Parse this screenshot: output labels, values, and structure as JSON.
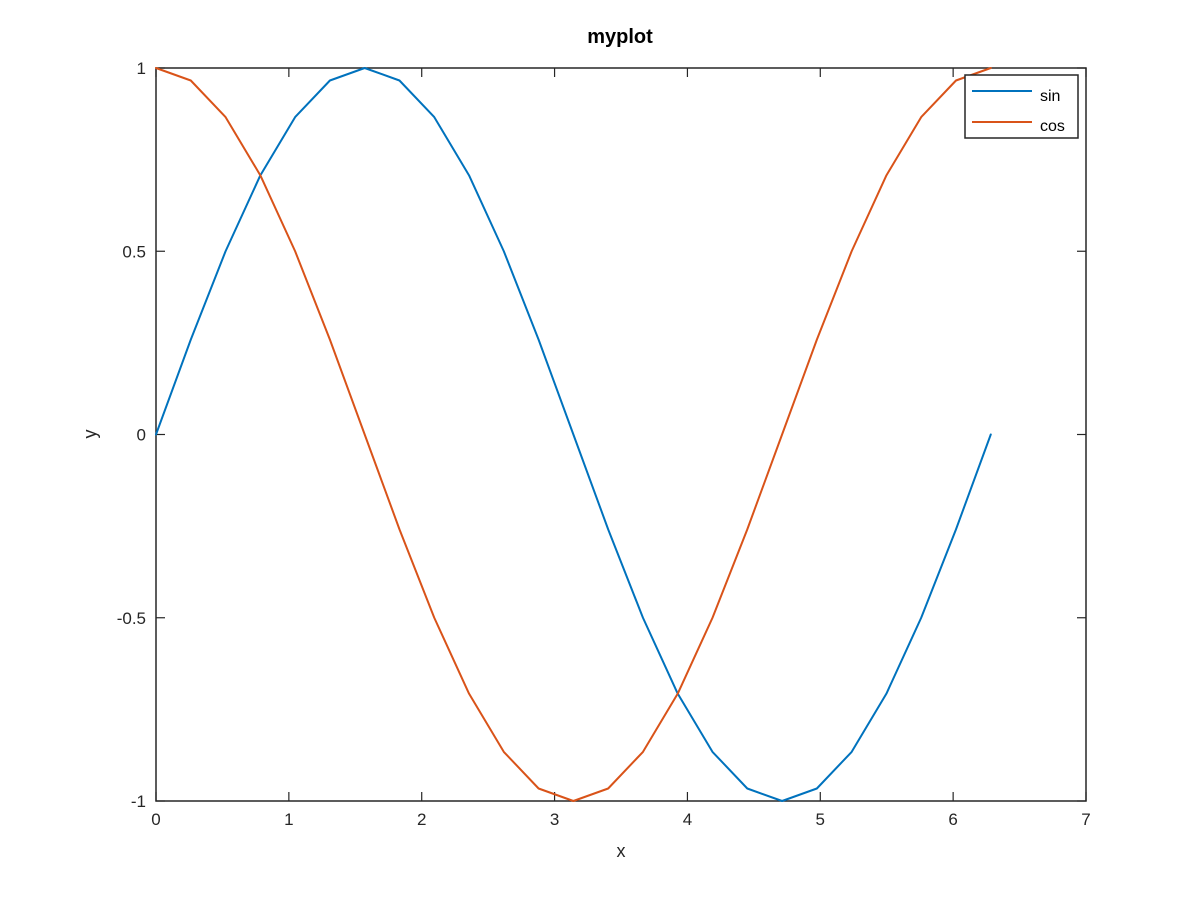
{
  "chart_data": {
    "type": "line",
    "title": "myplot",
    "xlabel": "x",
    "ylabel": "y",
    "xlim": [
      0,
      7
    ],
    "ylim": [
      -1,
      1
    ],
    "xticks": [
      0,
      1,
      2,
      3,
      4,
      5,
      6,
      7
    ],
    "yticks": [
      -1,
      -0.5,
      0,
      0.5,
      1
    ],
    "xtick_labels": [
      "0",
      "1",
      "2",
      "3",
      "4",
      "5",
      "6",
      "7"
    ],
    "ytick_labels": [
      "-1",
      "-0.5",
      "0",
      "0.5",
      "1"
    ],
    "grid": false,
    "legend": "top-right",
    "x": [
      0,
      0.2618,
      0.5236,
      0.7854,
      1.0472,
      1.309,
      1.5708,
      1.8326,
      2.0944,
      2.3562,
      2.618,
      2.8798,
      3.1416,
      3.4034,
      3.6652,
      3.927,
      4.1888,
      4.4506,
      4.7124,
      4.9742,
      5.236,
      5.4978,
      5.7596,
      6.0214,
      6.2832
    ],
    "series": [
      {
        "name": "sin",
        "color": "#0072bd",
        "values": [
          0,
          0.2588,
          0.5,
          0.7071,
          0.866,
          0.9659,
          1,
          0.9659,
          0.866,
          0.7071,
          0.5,
          0.2588,
          0,
          -0.2588,
          -0.5,
          -0.7071,
          -0.866,
          -0.9659,
          -1,
          -0.9659,
          -0.866,
          -0.7071,
          -0.5,
          -0.2588,
          0
        ]
      },
      {
        "name": "cos",
        "color": "#d95319",
        "values": [
          1,
          0.9659,
          0.866,
          0.7071,
          0.5,
          0.2588,
          0,
          -0.2588,
          -0.5,
          -0.7071,
          -0.866,
          -0.9659,
          -1,
          -0.9659,
          -0.866,
          -0.7071,
          -0.5,
          -0.2588,
          0,
          0.2588,
          0.5,
          0.7071,
          0.866,
          0.9659,
          1
        ]
      }
    ]
  }
}
